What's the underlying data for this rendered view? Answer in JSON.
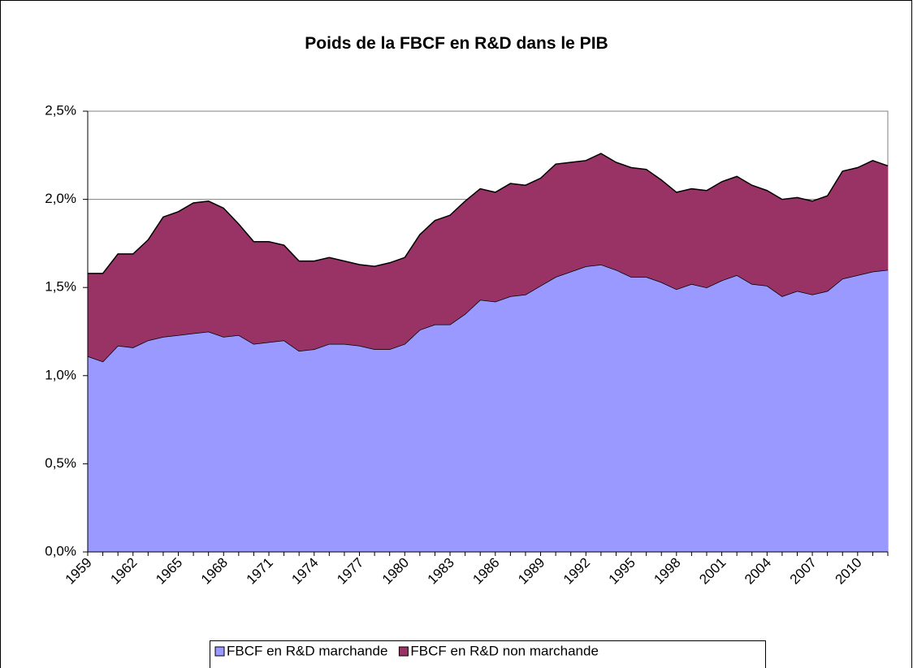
{
  "chart_data": {
    "type": "stacked_area",
    "title": "Poids de la FBCF en R&D dans le PIB",
    "categories": [
      "1959",
      null,
      null,
      "1962",
      null,
      null,
      "1965",
      null,
      null,
      "1968",
      null,
      null,
      "1971",
      null,
      null,
      "1974",
      null,
      null,
      "1977",
      null,
      null,
      "1980",
      null,
      null,
      "1983",
      null,
      null,
      "1986",
      null,
      null,
      "1989",
      null,
      null,
      "1992",
      null,
      null,
      "1995",
      null,
      null,
      "1998",
      null,
      null,
      "2001",
      null,
      null,
      "2004",
      null,
      null,
      "2007",
      null,
      null,
      "2010",
      null,
      null
    ],
    "series": [
      {
        "name": "FBCF en R&D marchande",
        "color": "#9999ff",
        "values": [
          1.11,
          1.08,
          1.17,
          1.16,
          1.2,
          1.22,
          1.23,
          1.24,
          1.25,
          1.22,
          1.23,
          1.18,
          1.19,
          1.2,
          1.14,
          1.15,
          1.18,
          1.18,
          1.17,
          1.15,
          1.15,
          1.18,
          1.26,
          1.29,
          1.29,
          1.35,
          1.43,
          1.42,
          1.45,
          1.46,
          1.51,
          1.56,
          1.59,
          1.62,
          1.63,
          1.6,
          1.56,
          1.56,
          1.53,
          1.49,
          1.52,
          1.5,
          1.54,
          1.57,
          1.52,
          1.51,
          1.45,
          1.48,
          1.46,
          1.48,
          1.55,
          1.57,
          1.59,
          1.6
        ]
      },
      {
        "name": "FBCF en R&D non marchande",
        "color": "#993366",
        "values": [
          0.47,
          0.5,
          0.52,
          0.53,
          0.57,
          0.68,
          0.7,
          0.74,
          0.74,
          0.73,
          0.63,
          0.58,
          0.57,
          0.54,
          0.51,
          0.5,
          0.49,
          0.47,
          0.46,
          0.47,
          0.49,
          0.49,
          0.54,
          0.59,
          0.62,
          0.64,
          0.63,
          0.62,
          0.64,
          0.62,
          0.61,
          0.64,
          0.62,
          0.6,
          0.63,
          0.61,
          0.62,
          0.61,
          0.58,
          0.55,
          0.54,
          0.55,
          0.56,
          0.56,
          0.56,
          0.54,
          0.55,
          0.53,
          0.53,
          0.54,
          0.61,
          0.61,
          0.63,
          0.59
        ]
      }
    ],
    "ylim": [
      0,
      2.5
    ],
    "yticks": [
      {
        "value": 0,
        "label": "0,0%"
      },
      {
        "value": 0.5,
        "label": "0,5%"
      },
      {
        "value": 1,
        "label": "1,0%"
      },
      {
        "value": 1.5,
        "label": "1,5%"
      },
      {
        "value": 2,
        "label": "2,0%"
      },
      {
        "value": 2.5,
        "label": "2,5%"
      }
    ],
    "grid": true,
    "legend": "bottom"
  }
}
